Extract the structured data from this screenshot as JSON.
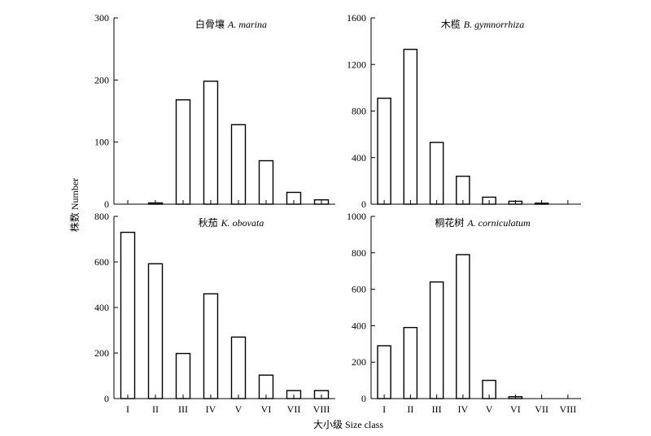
{
  "axis": {
    "ylabel": "株数 Number",
    "xlabel": "大小级 Size class"
  },
  "chart_data": [
    {
      "type": "bar",
      "title_cn": "白骨壤",
      "title_latin": "A. marina",
      "categories": [
        "I",
        "II",
        "III",
        "IV",
        "V",
        "VI",
        "VII",
        "VIII"
      ],
      "values": [
        0,
        2,
        168,
        198,
        128,
        70,
        19,
        7
      ],
      "ylim": [
        0,
        300
      ],
      "yticks": [
        0,
        100,
        200,
        300
      ],
      "show_xticklabels": false
    },
    {
      "type": "bar",
      "title_cn": "木榄",
      "title_latin": "B. gymnorrhiza",
      "categories": [
        "I",
        "II",
        "III",
        "IV",
        "V",
        "VI",
        "VII",
        "VIII"
      ],
      "values": [
        910,
        1330,
        530,
        240,
        60,
        25,
        8,
        0
      ],
      "ylim": [
        0,
        1600
      ],
      "yticks": [
        0,
        400,
        800,
        1200,
        1600
      ],
      "show_xticklabels": false
    },
    {
      "type": "bar",
      "title_cn": "秋茄",
      "title_latin": "K. obovata",
      "categories": [
        "I",
        "II",
        "III",
        "IV",
        "V",
        "VI",
        "VII",
        "VIII"
      ],
      "values": [
        730,
        592,
        198,
        460,
        270,
        103,
        35,
        35
      ],
      "ylim": [
        0,
        800
      ],
      "yticks": [
        0,
        200,
        400,
        600,
        800
      ],
      "show_xticklabels": true
    },
    {
      "type": "bar",
      "title_cn": "桐花树",
      "title_latin": "A. corniculatum",
      "categories": [
        "I",
        "II",
        "III",
        "IV",
        "V",
        "VI",
        "VII",
        "VIII"
      ],
      "values": [
        290,
        390,
        640,
        790,
        100,
        10,
        0,
        0
      ],
      "ylim": [
        0,
        1000
      ],
      "yticks": [
        0,
        200,
        400,
        600,
        800,
        1000
      ],
      "show_xticklabels": true
    }
  ]
}
